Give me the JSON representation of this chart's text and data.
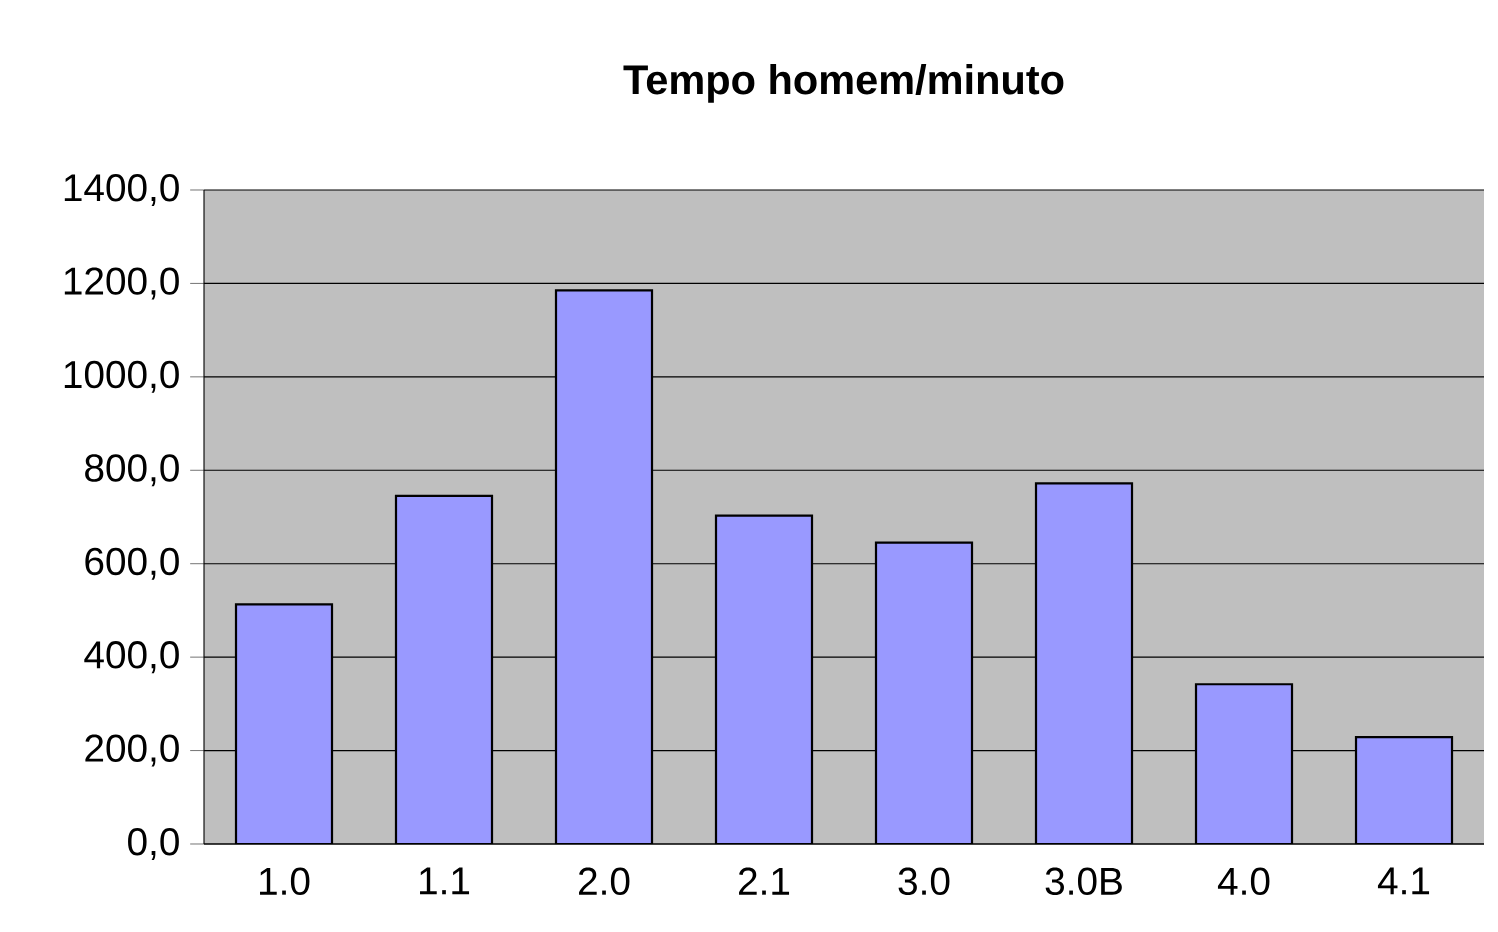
{
  "chart_data": {
    "type": "bar",
    "title": "Tempo homem/minuto",
    "categories": [
      "1.0",
      "1.1",
      "2.0",
      "2.1",
      "3.0",
      "3.0B",
      "4.0",
      "4.1"
    ],
    "values": [
      513,
      745,
      1185,
      703,
      645,
      772,
      342,
      229
    ],
    "color": "#9999ff",
    "ylim": [
      0,
      1400
    ],
    "yticks": [
      {
        "value": 0,
        "label": "0,0"
      },
      {
        "value": 200,
        "label": "200,0"
      },
      {
        "value": 400,
        "label": "400,0"
      },
      {
        "value": 600,
        "label": "600,0"
      },
      {
        "value": 800,
        "label": "800,0"
      },
      {
        "value": 1000,
        "label": "1000,0"
      },
      {
        "value": 1200,
        "label": "1200,0"
      },
      {
        "value": 1400,
        "label": "1400,0"
      }
    ],
    "grid": "y"
  }
}
